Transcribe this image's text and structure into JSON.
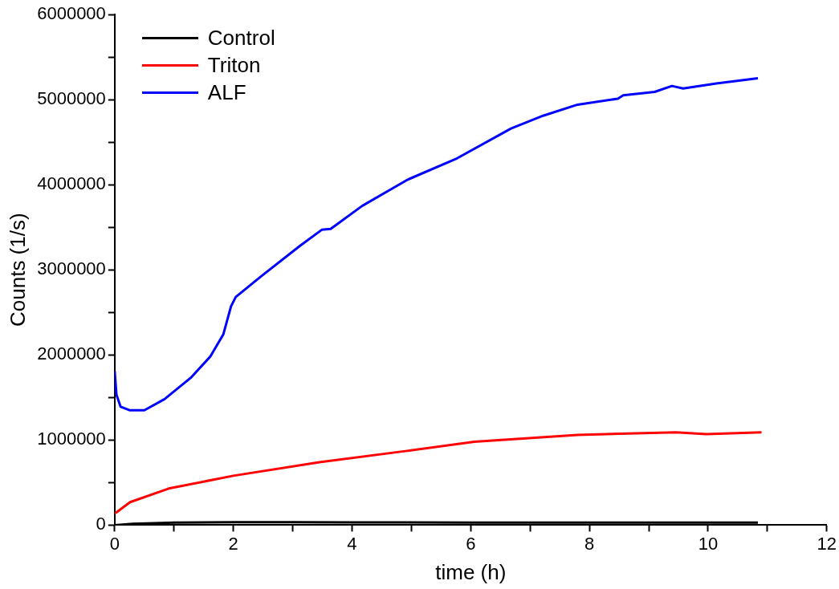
{
  "chart_data": {
    "type": "line",
    "xlabel": "time (h)",
    "ylabel": "Counts (1/s)",
    "xlim": [
      0,
      12
    ],
    "xticks": [
      0,
      {
        "value": 1,
        "label": null
      },
      2,
      {
        "value": 3,
        "label": null
      },
      4,
      {
        "value": 5,
        "label": null
      },
      6,
      {
        "value": 7,
        "label": null
      },
      8,
      {
        "value": 9,
        "label": null
      },
      10,
      {
        "value": 11,
        "label": null
      },
      12
    ],
    "ylim": [
      0,
      6000000
    ],
    "yticks": [
      0,
      {
        "value": 500000,
        "label": null
      },
      1000000,
      {
        "value": 1500000,
        "label": null
      },
      2000000,
      {
        "value": 2500000,
        "label": null
      },
      3000000,
      {
        "value": 3500000,
        "label": null
      },
      4000000,
      {
        "value": 4500000,
        "label": null
      },
      5000000,
      {
        "value": 5500000,
        "label": null
      },
      6000000
    ],
    "grid": false,
    "legend": "top left",
    "marker": "none",
    "line_style": "solid",
    "series": [
      {
        "name": "Control",
        "color": "#000000",
        "x": [
          0,
          0.3,
          0.55,
          1,
          2,
          3,
          4,
          6,
          8,
          10.84
        ],
        "values": [
          0,
          15000,
          20000,
          30000,
          35000,
          35000,
          32000,
          30000,
          30000,
          30000
        ]
      },
      {
        "name": "Triton",
        "color": "#ff0000",
        "x": [
          0,
          0.03,
          0.26,
          0.91,
          2,
          3.45,
          4.9,
          6.06,
          7.8,
          9.46,
          9.97,
          10.9
        ],
        "values": [
          140000,
          150000,
          270000,
          430000,
          580000,
          740000,
          870000,
          980000,
          1060000,
          1090000,
          1070000,
          1090000
        ]
      },
      {
        "name": "ALF",
        "color": "#0000ff",
        "x": [
          0,
          0.03,
          0.1,
          0.25,
          0.5,
          0.84,
          1.28,
          1.61,
          1.83,
          1.96,
          2.04,
          2.48,
          3.12,
          3.49,
          3.64,
          4.17,
          4.94,
          5.77,
          6.68,
          7.22,
          7.8,
          8.48,
          8.57,
          9.1,
          9.39,
          9.58,
          10.14,
          10.84
        ],
        "values": [
          1810000,
          1530000,
          1390000,
          1350000,
          1350000,
          1480000,
          1730000,
          1980000,
          2240000,
          2570000,
          2680000,
          2930000,
          3280000,
          3470000,
          3480000,
          3750000,
          4060000,
          4310000,
          4660000,
          4810000,
          4940000,
          5010000,
          5050000,
          5090000,
          5160000,
          5130000,
          5190000,
          5250000
        ]
      }
    ]
  }
}
